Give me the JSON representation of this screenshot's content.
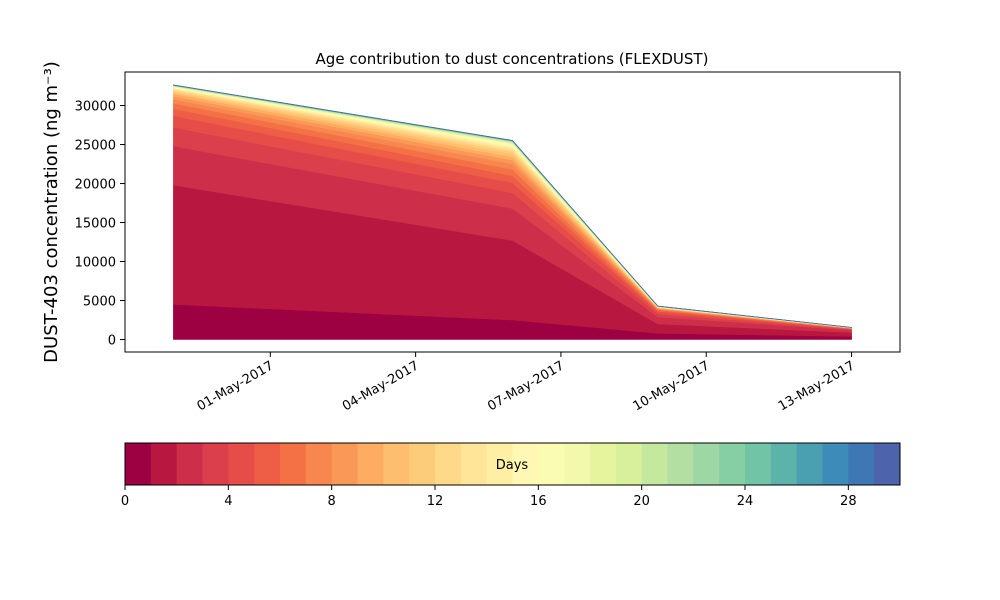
{
  "chart_data": {
    "type": "area",
    "title": "Age contribution to dust concentrations (FLEXDUST)",
    "ylabel": "DUST-403 concentration (ng m⁻³)",
    "xlabel": "",
    "x": [
      "2017-04-29",
      "2017-05-06",
      "2017-05-09",
      "2017-05-13"
    ],
    "xlim": [
      "2017-04-28",
      "2017-05-14"
    ],
    "ylim": [
      -1600,
      34300
    ],
    "yticks": [
      0,
      5000,
      10000,
      15000,
      20000,
      25000,
      30000
    ],
    "xticks": [
      "01-May-2017",
      "04-May-2017",
      "07-May-2017",
      "10-May-2017",
      "13-May-2017"
    ],
    "xtick_dates": [
      "2017-05-01",
      "2017-05-04",
      "2017-05-07",
      "2017-05-10",
      "2017-05-13"
    ],
    "cumulative_totals_by_age": [
      {
        "age": 1,
        "values": [
          4500,
          2500,
          800,
          400
        ]
      },
      {
        "age": 2,
        "values": [
          19800,
          12700,
          2000,
          900
        ]
      },
      {
        "age": 3,
        "values": [
          24800,
          16800,
          2900,
          1200
        ]
      },
      {
        "age": 4,
        "values": [
          27200,
          18800,
          3300,
          1300
        ]
      },
      {
        "age": 5,
        "values": [
          28700,
          20100,
          3600,
          1350
        ]
      },
      {
        "age": 6,
        "values": [
          29600,
          21000,
          3750,
          1400
        ]
      },
      {
        "age": 7,
        "values": [
          30300,
          21800,
          3850,
          1420
        ]
      },
      {
        "age": 8,
        "values": [
          30800,
          22500,
          3950,
          1440
        ]
      },
      {
        "age": 9,
        "values": [
          31200,
          23000,
          4000,
          1460
        ]
      },
      {
        "age": 10,
        "values": [
          31500,
          23400,
          4050,
          1480
        ]
      },
      {
        "age": 11,
        "values": [
          31700,
          23800,
          4080,
          1490
        ]
      },
      {
        "age": 12,
        "values": [
          31900,
          24100,
          4110,
          1500
        ]
      },
      {
        "age": 13,
        "values": [
          32050,
          24350,
          4140,
          1505
        ]
      },
      {
        "age": 14,
        "values": [
          32150,
          24550,
          4160,
          1510
        ]
      },
      {
        "age": 15,
        "values": [
          32250,
          24750,
          4180,
          1515
        ]
      },
      {
        "age": 16,
        "values": [
          32330,
          24900,
          4200,
          1520
        ]
      },
      {
        "age": 17,
        "values": [
          32390,
          25030,
          4210,
          1525
        ]
      },
      {
        "age": 18,
        "values": [
          32440,
          25140,
          4220,
          1528
        ]
      },
      {
        "age": 19,
        "values": [
          32480,
          25230,
          4230,
          1531
        ]
      },
      {
        "age": 20,
        "values": [
          32510,
          25300,
          4240,
          1534
        ]
      },
      {
        "age": 21,
        "values": [
          32540,
          25360,
          4250,
          1537
        ]
      },
      {
        "age": 22,
        "values": [
          32560,
          25400,
          4255,
          1540
        ]
      },
      {
        "age": 23,
        "values": [
          32580,
          25430,
          4260,
          1542
        ]
      },
      {
        "age": 24,
        "values": [
          32595,
          25455,
          4265,
          1544
        ]
      },
      {
        "age": 25,
        "values": [
          32610,
          25475,
          4270,
          1546
        ]
      },
      {
        "age": 26,
        "values": [
          32620,
          25490,
          4275,
          1548
        ]
      },
      {
        "age": 27,
        "values": [
          32630,
          25500,
          4278,
          1549
        ]
      },
      {
        "age": 28,
        "values": [
          32638,
          25510,
          4281,
          1550
        ]
      },
      {
        "age": 29,
        "values": [
          32645,
          25518,
          4284,
          1551
        ]
      },
      {
        "age": 30,
        "values": [
          32650,
          25525,
          4287,
          1552
        ]
      }
    ],
    "colorbar": {
      "label": "Days",
      "range": [
        0,
        30
      ],
      "ticks": [
        "0",
        "4",
        "8",
        "12",
        "16",
        "20",
        "24",
        "28"
      ],
      "tick_values": [
        0,
        4,
        8,
        12,
        16,
        20,
        24,
        28
      ],
      "colors": [
        "#9e0142",
        "#b8183f",
        "#cd2e4a",
        "#da3f4b",
        "#e64d49",
        "#ee5d46",
        "#f47145",
        "#f7864f",
        "#fa9957",
        "#fdac61",
        "#fdbe6f",
        "#fdcc7b",
        "#fed98a",
        "#fee597",
        "#feefa5",
        "#fff8b4",
        "#fbfcb4",
        "#f2f9ac",
        "#e6f49d",
        "#d8ef9b",
        "#c5e89f",
        "#b3e0a2",
        "#9dd7a3",
        "#86cea4",
        "#72c4a6",
        "#5db2aa",
        "#4a9fb0",
        "#3d8bb8",
        "#3f77b4",
        "#4d64ac"
      ]
    },
    "grid": false,
    "legend": "colorbar-bottom"
  }
}
